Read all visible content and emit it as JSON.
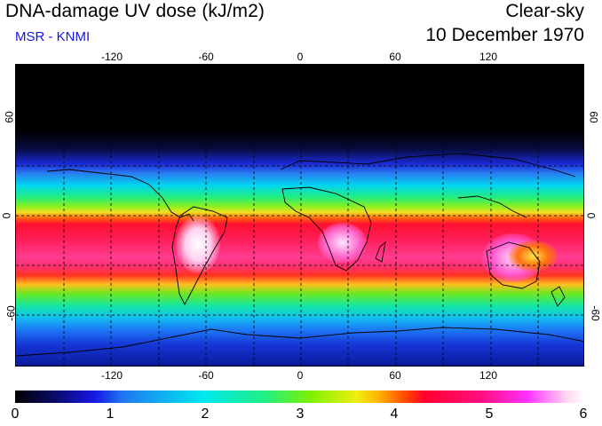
{
  "header": {
    "title": "DNA-damage UV dose (kJ/m2)",
    "source": "MSR - KNMI",
    "sky_condition": "Clear-sky",
    "date": "10 December 1970"
  },
  "map": {
    "projection": "equirectangular",
    "lon_range": [
      -180,
      180
    ],
    "lat_range": [
      -90,
      90
    ],
    "gridlines": "dashed every 30 degrees",
    "lon_tick_labels": [
      "-120",
      "-60",
      "0",
      "60",
      "120"
    ],
    "lat_tick_labels_left": [
      "60",
      "0",
      "-60"
    ],
    "lat_tick_labels_right": [
      "60",
      "0",
      "-60"
    ]
  },
  "colorbar": {
    "min": 0,
    "max": 6,
    "labels": [
      "0",
      "1",
      "2",
      "3",
      "4",
      "5",
      "6"
    ]
  },
  "colors": {
    "source_text": "#1414e8",
    "grid": "#000000"
  }
}
